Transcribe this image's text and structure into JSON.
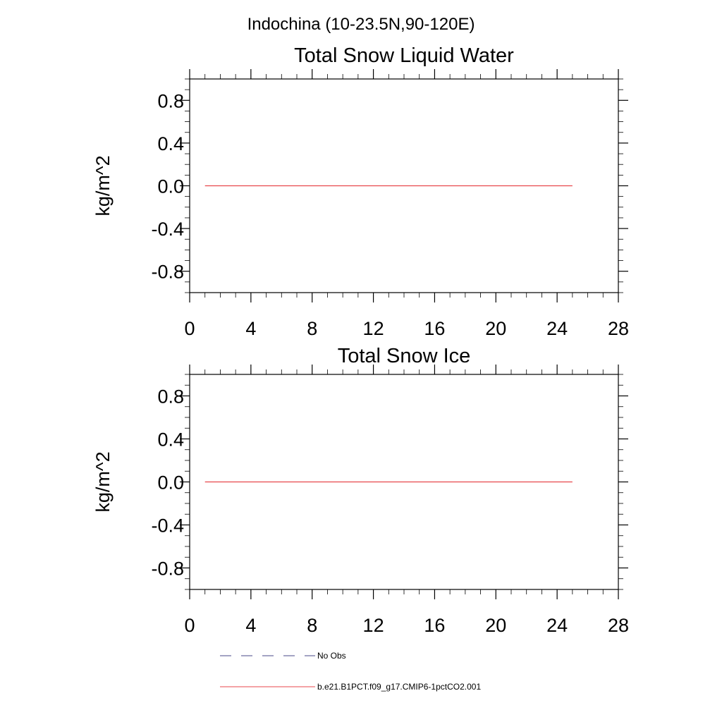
{
  "main_title": "Indochina (10-23.5N,90-120E)",
  "chart_data": [
    {
      "type": "line",
      "title": "Total Snow Liquid Water",
      "xlabel": "",
      "ylabel": "kg/m^2",
      "xlim": [
        0,
        28
      ],
      "ylim": [
        -1,
        1
      ],
      "x_ticks": [
        0,
        4,
        8,
        12,
        16,
        20,
        24,
        28
      ],
      "x_tick_labels": [
        "0",
        "4",
        "8",
        "12",
        "16",
        "20",
        "24",
        "28"
      ],
      "y_ticks": [
        0.8,
        0.4,
        0.0,
        -0.4,
        -0.8
      ],
      "y_tick_labels": [
        "0.8",
        "0.4",
        "0.0",
        "-0.4",
        "-0.8"
      ],
      "grid": false,
      "series": [
        {
          "name": "b.e21.B1PCT.f09_g17.CMIP6-1pctCO2.001",
          "color": "#e8474c",
          "x": [
            1,
            25
          ],
          "y": [
            0.0,
            0.0
          ]
        }
      ]
    },
    {
      "type": "line",
      "title": "Total Snow Ice",
      "xlabel": "",
      "ylabel": "kg/m^2",
      "xlim": [
        0,
        28
      ],
      "ylim": [
        -1,
        1
      ],
      "x_ticks": [
        0,
        4,
        8,
        12,
        16,
        20,
        24,
        28
      ],
      "x_tick_labels": [
        "0",
        "4",
        "8",
        "12",
        "16",
        "20",
        "24",
        "28"
      ],
      "y_ticks": [
        0.8,
        0.4,
        0.0,
        -0.4,
        -0.8
      ],
      "y_tick_labels": [
        "0.8",
        "0.4",
        "0.0",
        "-0.4",
        "-0.8"
      ],
      "grid": false,
      "series": [
        {
          "name": "b.e21.B1PCT.f09_g17.CMIP6-1pctCO2.001",
          "color": "#e8474c",
          "x": [
            1,
            25
          ],
          "y": [
            0.0,
            0.0
          ]
        }
      ]
    }
  ],
  "legend": {
    "placement": "bottom-left",
    "entries": [
      {
        "label": "No Obs",
        "color": "#4a4a8a",
        "style": "dashed"
      },
      {
        "label": "b.e21.B1PCT.f09_g17.CMIP6-1pctCO2.001",
        "color": "#e8474c",
        "style": "solid"
      }
    ]
  }
}
